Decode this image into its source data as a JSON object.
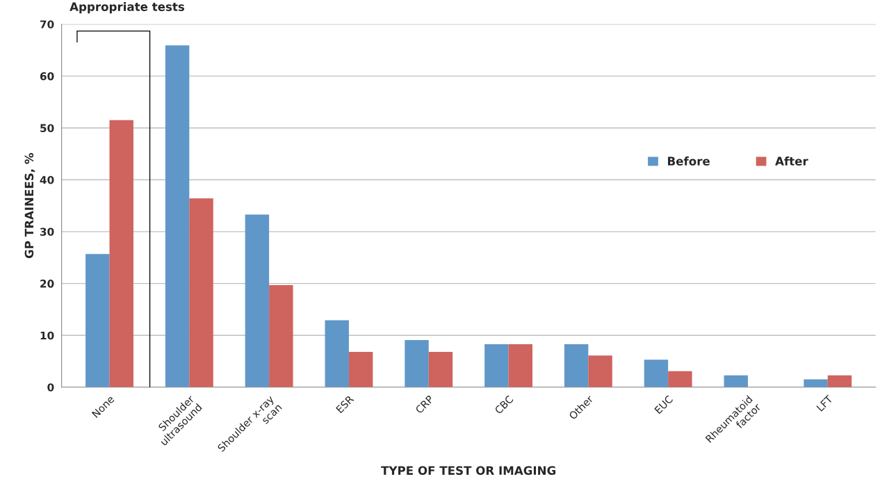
{
  "chart_data": {
    "type": "bar",
    "xlabel": "TYPE OF TEST OR IMAGING",
    "ylabel": "GP TRAINEES, %",
    "categories": [
      "None",
      "Shoulder\nultrasound",
      "Shoulder x-ray\nscan",
      "ESR",
      "CRP",
      "CBC",
      "Other",
      "EUC",
      "Rheumatoid\nfactor",
      "LFT"
    ],
    "series": [
      {
        "name": "Before",
        "color": "#6097c9",
        "values": [
          25.7,
          65.9,
          33.3,
          12.9,
          9.1,
          8.3,
          8.3,
          5.3,
          2.3,
          1.5
        ]
      },
      {
        "name": "After",
        "color": "#cf635d",
        "values": [
          51.5,
          36.4,
          19.7,
          6.8,
          6.8,
          8.3,
          6.1,
          3.1,
          null,
          2.3
        ]
      }
    ],
    "ylim": [
      0,
      70
    ],
    "yticks": [
      0,
      10,
      20,
      30,
      40,
      50,
      60,
      70
    ],
    "grid": "y",
    "legend": "right",
    "annotations": [
      "Appropriate tests"
    ]
  }
}
